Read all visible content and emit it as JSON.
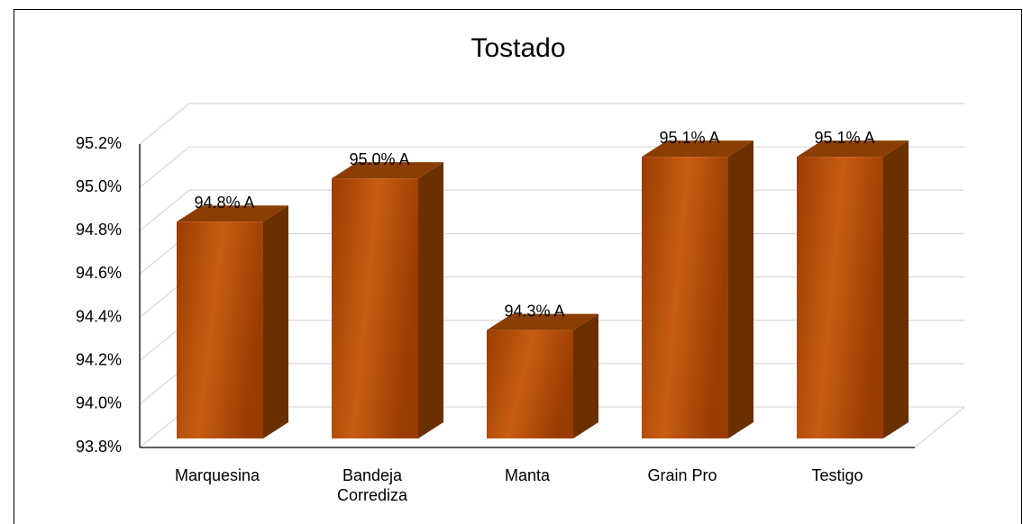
{
  "chart_data": {
    "type": "bar3d",
    "title": "Tostado",
    "categories": [
      "Marquesina",
      "Bandeja Corrediza",
      "Manta",
      "Grain Pro",
      "Testigo"
    ],
    "values": [
      94.8,
      95.0,
      94.3,
      95.1,
      95.1
    ],
    "value_labels": [
      "94.8% A",
      "95.0% A",
      "94.3% A",
      "95.1% A",
      "95.1% A"
    ],
    "color": "#b34d07",
    "ylim": [
      93.8,
      95.2
    ],
    "yticks": [
      {
        "value": 93.8,
        "label": "93.8%"
      },
      {
        "value": 94.0,
        "label": "94.0%"
      },
      {
        "value": 94.2,
        "label": "94.2%"
      },
      {
        "value": 94.4,
        "label": "94.4%"
      },
      {
        "value": 94.6,
        "label": "94.6%"
      },
      {
        "value": 94.8,
        "label": "94.8%"
      },
      {
        "value": 95.0,
        "label": "95.0%"
      },
      {
        "value": 95.2,
        "label": "95.2%"
      }
    ],
    "grid": true
  }
}
